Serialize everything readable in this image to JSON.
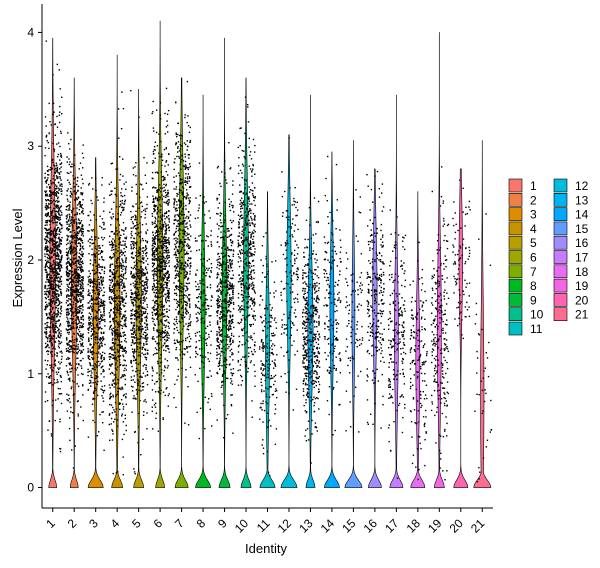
{
  "chart_data": {
    "type": "violin",
    "title": "",
    "xlabel": "Identity",
    "ylabel": "Expression Level",
    "ylim": [
      -0.18,
      4.25
    ],
    "yticks": [
      0,
      1,
      2,
      3,
      4
    ],
    "categories": [
      "1",
      "2",
      "3",
      "4",
      "5",
      "6",
      "7",
      "8",
      "9",
      "10",
      "11",
      "12",
      "13",
      "14",
      "15",
      "16",
      "17",
      "18",
      "19",
      "20",
      "21"
    ],
    "colors": [
      "#F8766D",
      "#EF7F47",
      "#DE8C00",
      "#C89300",
      "#B79F00",
      "#9DA700",
      "#7CAE00",
      "#00B81F",
      "#00BA38",
      "#00C08B",
      "#00BFC4",
      "#00BBDB",
      "#00B4F0",
      "#00A9FF",
      "#619CFF",
      "#9F8CFF",
      "#C77CFF",
      "#E76BF3",
      "#F564E3",
      "#FF64B0",
      "#FF6C91"
    ],
    "series": [
      {
        "name": "1",
        "max": 3.95,
        "zero_frac": 0.4,
        "median": 1.95,
        "spread": 0.75,
        "width": 0.28,
        "points": 1100
      },
      {
        "name": "2",
        "max": 3.6,
        "zero_frac": 0.4,
        "median": 1.8,
        "spread": 0.65,
        "width": 0.28,
        "points": 950
      },
      {
        "name": "3",
        "max": 2.9,
        "zero_frac": 0.75,
        "median": 1.55,
        "spread": 0.6,
        "width": 0.25,
        "points": 550
      },
      {
        "name": "4",
        "max": 3.8,
        "zero_frac": 0.55,
        "median": 1.6,
        "spread": 0.7,
        "width": 0.28,
        "points": 700
      },
      {
        "name": "5",
        "max": 3.5,
        "zero_frac": 0.5,
        "median": 1.65,
        "spread": 0.65,
        "width": 0.27,
        "points": 650
      },
      {
        "name": "6",
        "max": 4.1,
        "zero_frac": 0.45,
        "median": 1.95,
        "spread": 0.7,
        "width": 0.28,
        "points": 850
      },
      {
        "name": "7",
        "max": 3.6,
        "zero_frac": 0.65,
        "median": 2.1,
        "spread": 0.7,
        "width": 0.25,
        "points": 600
      },
      {
        "name": "8",
        "max": 3.45,
        "zero_frac": 0.75,
        "median": 1.6,
        "spread": 0.6,
        "width": 0.2,
        "points": 200
      },
      {
        "name": "9",
        "max": 3.95,
        "zero_frac": 0.55,
        "median": 1.7,
        "spread": 0.6,
        "width": 0.24,
        "points": 550
      },
      {
        "name": "10",
        "max": 3.6,
        "zero_frac": 0.5,
        "median": 2.0,
        "spread": 0.65,
        "width": 0.24,
        "points": 500
      },
      {
        "name": "11",
        "max": 2.6,
        "zero_frac": 0.75,
        "median": 1.2,
        "spread": 0.6,
        "width": 0.2,
        "points": 200
      },
      {
        "name": "12",
        "max": 3.1,
        "zero_frac": 0.8,
        "median": 1.85,
        "spread": 0.6,
        "width": 0.22,
        "points": 150
      },
      {
        "name": "13",
        "max": 3.45,
        "zero_frac": 0.45,
        "median": 1.4,
        "spread": 0.55,
        "width": 0.26,
        "points": 450
      },
      {
        "name": "14",
        "max": 2.95,
        "zero_frac": 0.75,
        "median": 1.6,
        "spread": 0.55,
        "width": 0.2,
        "points": 170
      },
      {
        "name": "15",
        "max": 3.05,
        "zero_frac": 0.85,
        "median": 1.5,
        "spread": 0.55,
        "width": 0.15,
        "points": 90
      },
      {
        "name": "16",
        "max": 2.8,
        "zero_frac": 0.65,
        "median": 1.7,
        "spread": 0.55,
        "width": 0.22,
        "points": 250
      },
      {
        "name": "17",
        "max": 3.45,
        "zero_frac": 0.65,
        "median": 1.35,
        "spread": 0.6,
        "width": 0.2,
        "points": 200
      },
      {
        "name": "18",
        "max": 2.6,
        "zero_frac": 0.7,
        "median": 1.1,
        "spread": 0.55,
        "width": 0.2,
        "points": 160
      },
      {
        "name": "19",
        "max": 4.0,
        "zero_frac": 0.5,
        "median": 1.4,
        "spread": 0.65,
        "width": 0.21,
        "points": 250
      },
      {
        "name": "20",
        "max": 2.8,
        "zero_frac": 0.7,
        "median": 2.0,
        "spread": 0.5,
        "width": 0.18,
        "points": 90
      },
      {
        "name": "21",
        "max": 3.05,
        "zero_frac": 0.85,
        "median": 0.8,
        "spread": 0.8,
        "width": 0.17,
        "points": 40
      }
    ],
    "legend": {
      "placement": "right",
      "columns": 2
    },
    "grid": false
  }
}
